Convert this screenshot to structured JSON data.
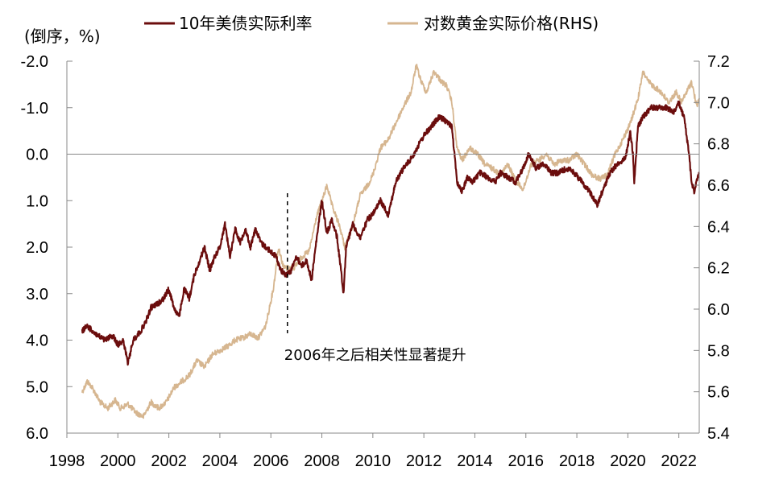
{
  "chart_data": {
    "type": "line",
    "unit_label": "(倒序，%)",
    "x_ticks": [
      "1998",
      "2000",
      "2002",
      "2004",
      "2006",
      "2008",
      "2010",
      "2012",
      "2014",
      "2016",
      "2018",
      "2020",
      "2022"
    ],
    "xlim": [
      1998.0,
      2022.8
    ],
    "y_left": {
      "inverted": true,
      "range": [
        -2.0,
        6.0
      ],
      "ticks": [
        "-2.0",
        "-1.0",
        "0.0",
        "1.0",
        "2.0",
        "3.0",
        "4.0",
        "5.0",
        "6.0"
      ]
    },
    "y_right": {
      "range": [
        5.4,
        7.2
      ],
      "ticks": [
        "7.2",
        "7.0",
        "6.8",
        "6.6",
        "6.4",
        "6.2",
        "6.0",
        "5.8",
        "5.6",
        "5.4"
      ]
    },
    "legend": {
      "placement": "top",
      "items": [
        "10年美债实际利率",
        "对数黄金实际价格(RHS)"
      ]
    },
    "series": [
      {
        "name": "10年美债实际利率",
        "axis": "left",
        "color": "#6b0d0d",
        "x": [
          1998.6,
          1998.8,
          1999.0,
          1999.2,
          1999.5,
          1999.8,
          2000.0,
          2000.2,
          2000.4,
          2000.6,
          2000.9,
          2001.1,
          2001.3,
          2001.6,
          2001.8,
          2002.0,
          2002.2,
          2002.4,
          2002.6,
          2002.8,
          2003.0,
          2003.2,
          2003.4,
          2003.6,
          2003.8,
          2004.0,
          2004.2,
          2004.4,
          2004.6,
          2004.8,
          2005.0,
          2005.2,
          2005.4,
          2005.6,
          2005.8,
          2006.0,
          2006.2,
          2006.4,
          2006.6,
          2006.8,
          2007.0,
          2007.2,
          2007.4,
          2007.6,
          2007.8,
          2008.0,
          2008.2,
          2008.4,
          2008.6,
          2008.75,
          2008.85,
          2008.95,
          2009.2,
          2009.5,
          2009.8,
          2010.0,
          2010.3,
          2010.6,
          2010.9,
          2011.2,
          2011.5,
          2011.8,
          2012.0,
          2012.3,
          2012.6,
          2012.9,
          2013.1,
          2013.3,
          2013.5,
          2013.7,
          2013.9,
          2014.2,
          2014.5,
          2014.8,
          2015.0,
          2015.3,
          2015.6,
          2015.9,
          2016.1,
          2016.4,
          2016.7,
          2017.0,
          2017.3,
          2017.6,
          2017.9,
          2018.2,
          2018.5,
          2018.8,
          2019.0,
          2019.3,
          2019.6,
          2019.9,
          2020.0,
          2020.1,
          2020.2,
          2020.25,
          2020.4,
          2020.6,
          2020.9,
          2021.2,
          2021.5,
          2021.8,
          2022.0,
          2022.2,
          2022.4,
          2022.5,
          2022.6,
          2022.7,
          2022.8
        ],
        "values": [
          3.8,
          3.7,
          3.8,
          3.9,
          4.0,
          3.9,
          4.1,
          4.0,
          4.5,
          4.0,
          3.8,
          3.6,
          3.3,
          3.2,
          3.1,
          2.9,
          3.3,
          3.5,
          2.9,
          3.1,
          2.6,
          2.3,
          2.0,
          2.5,
          2.2,
          2.0,
          1.5,
          2.2,
          1.6,
          1.9,
          1.6,
          2.0,
          1.6,
          1.9,
          2.0,
          2.1,
          2.2,
          2.5,
          2.6,
          2.5,
          2.2,
          2.4,
          2.3,
          2.7,
          1.8,
          1.0,
          1.7,
          1.4,
          1.8,
          2.5,
          3.0,
          2.0,
          1.5,
          1.8,
          1.4,
          1.3,
          1.0,
          1.3,
          0.6,
          0.3,
          0.1,
          -0.2,
          -0.4,
          -0.6,
          -0.8,
          -0.7,
          -0.6,
          0.6,
          0.8,
          0.5,
          0.6,
          0.4,
          0.5,
          0.6,
          0.4,
          0.5,
          0.6,
          0.3,
          0.0,
          0.3,
          0.2,
          0.4,
          0.4,
          0.3,
          0.4,
          0.6,
          0.8,
          1.1,
          0.8,
          0.4,
          0.2,
          0.1,
          -0.2,
          -0.5,
          0.0,
          0.6,
          -0.6,
          -0.8,
          -1.0,
          -1.0,
          -1.0,
          -0.9,
          -1.1,
          -0.8,
          0.0,
          0.6,
          0.8,
          0.6,
          0.4
        ]
      },
      {
        "name": "对数黄金实际价格(RHS)",
        "axis": "right",
        "color": "#d6b690",
        "x": [
          1998.6,
          1998.8,
          1999.0,
          1999.3,
          1999.6,
          1999.9,
          2000.1,
          2000.4,
          2000.7,
          2001.0,
          2001.3,
          2001.6,
          2001.9,
          2002.2,
          2002.5,
          2002.8,
          2003.1,
          2003.4,
          2003.7,
          2004.0,
          2004.3,
          2004.6,
          2004.9,
          2005.2,
          2005.5,
          2005.8,
          2006.1,
          2006.3,
          2006.5,
          2006.7,
          2006.9,
          2007.2,
          2007.5,
          2007.8,
          2008.0,
          2008.2,
          2008.4,
          2008.7,
          2008.9,
          2009.2,
          2009.5,
          2009.8,
          2010.0,
          2010.3,
          2010.6,
          2010.9,
          2011.2,
          2011.5,
          2011.7,
          2011.9,
          2012.1,
          2012.4,
          2012.7,
          2012.9,
          2013.1,
          2013.3,
          2013.5,
          2013.8,
          2014.1,
          2014.4,
          2014.7,
          2015.0,
          2015.3,
          2015.6,
          2015.9,
          2016.2,
          2016.5,
          2016.8,
          2017.1,
          2017.4,
          2017.7,
          2018.0,
          2018.3,
          2018.6,
          2018.9,
          2019.2,
          2019.5,
          2019.8,
          2020.1,
          2020.4,
          2020.6,
          2020.8,
          2021.0,
          2021.3,
          2021.6,
          2021.9,
          2022.1,
          2022.3,
          2022.5,
          2022.7,
          2022.8
        ],
        "values": [
          5.6,
          5.65,
          5.62,
          5.55,
          5.52,
          5.56,
          5.52,
          5.54,
          5.5,
          5.48,
          5.55,
          5.52,
          5.55,
          5.62,
          5.65,
          5.68,
          5.75,
          5.72,
          5.78,
          5.8,
          5.82,
          5.85,
          5.86,
          5.88,
          5.86,
          5.92,
          6.1,
          6.3,
          6.2,
          6.2,
          6.2,
          6.25,
          6.28,
          6.45,
          6.52,
          6.6,
          6.5,
          6.4,
          6.3,
          6.4,
          6.55,
          6.6,
          6.65,
          6.78,
          6.82,
          6.9,
          6.98,
          7.05,
          7.18,
          7.1,
          7.05,
          7.15,
          7.1,
          7.08,
          7.0,
          6.78,
          6.72,
          6.78,
          6.75,
          6.7,
          6.68,
          6.65,
          6.7,
          6.62,
          6.58,
          6.7,
          6.72,
          6.75,
          6.7,
          6.72,
          6.72,
          6.75,
          6.7,
          6.65,
          6.63,
          6.65,
          6.75,
          6.82,
          6.9,
          7.02,
          7.15,
          7.1,
          7.08,
          7.05,
          7.0,
          7.05,
          7.0,
          7.05,
          7.1,
          6.98,
          7.02
        ]
      }
    ],
    "annotations": [
      {
        "text": "2006年之后相关性显著提升",
        "x": 2006.65,
        "style": "dashed-vertical-line"
      }
    ]
  }
}
